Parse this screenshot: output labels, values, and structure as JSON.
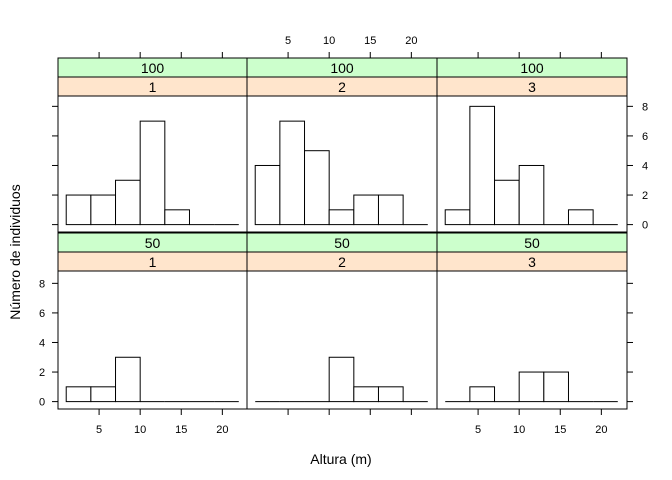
{
  "chart_data": {
    "type": "bar",
    "xlabel": "Altura (m)",
    "ylabel": "Número de individuos",
    "xlim": [
      0,
      23
    ],
    "ylim": [
      -0.5,
      8.7
    ],
    "x_ticks": [
      5,
      10,
      15,
      20
    ],
    "y_ticks": [
      0,
      2,
      4,
      6,
      8
    ],
    "bin_edges": [
      1,
      4,
      7,
      10,
      13,
      16,
      19,
      22
    ],
    "strip_colors": {
      "outer": "#ccffcc",
      "inner": "#ffe5cc"
    },
    "panels": [
      {
        "outer": "100",
        "inner": "1",
        "values": [
          2,
          2,
          3,
          7,
          1,
          0,
          0
        ]
      },
      {
        "outer": "100",
        "inner": "2",
        "values": [
          4,
          7,
          5,
          1,
          2,
          2,
          0
        ]
      },
      {
        "outer": "100",
        "inner": "3",
        "values": [
          1,
          8,
          3,
          4,
          0,
          1,
          0
        ]
      },
      {
        "outer": "50",
        "inner": "1",
        "values": [
          1,
          1,
          3,
          0,
          0,
          0,
          0
        ]
      },
      {
        "outer": "50",
        "inner": "2",
        "values": [
          0,
          0,
          0,
          3,
          1,
          1,
          0
        ]
      },
      {
        "outer": "50",
        "inner": "3",
        "values": [
          0,
          1,
          0,
          2,
          2,
          0,
          0
        ]
      }
    ]
  }
}
